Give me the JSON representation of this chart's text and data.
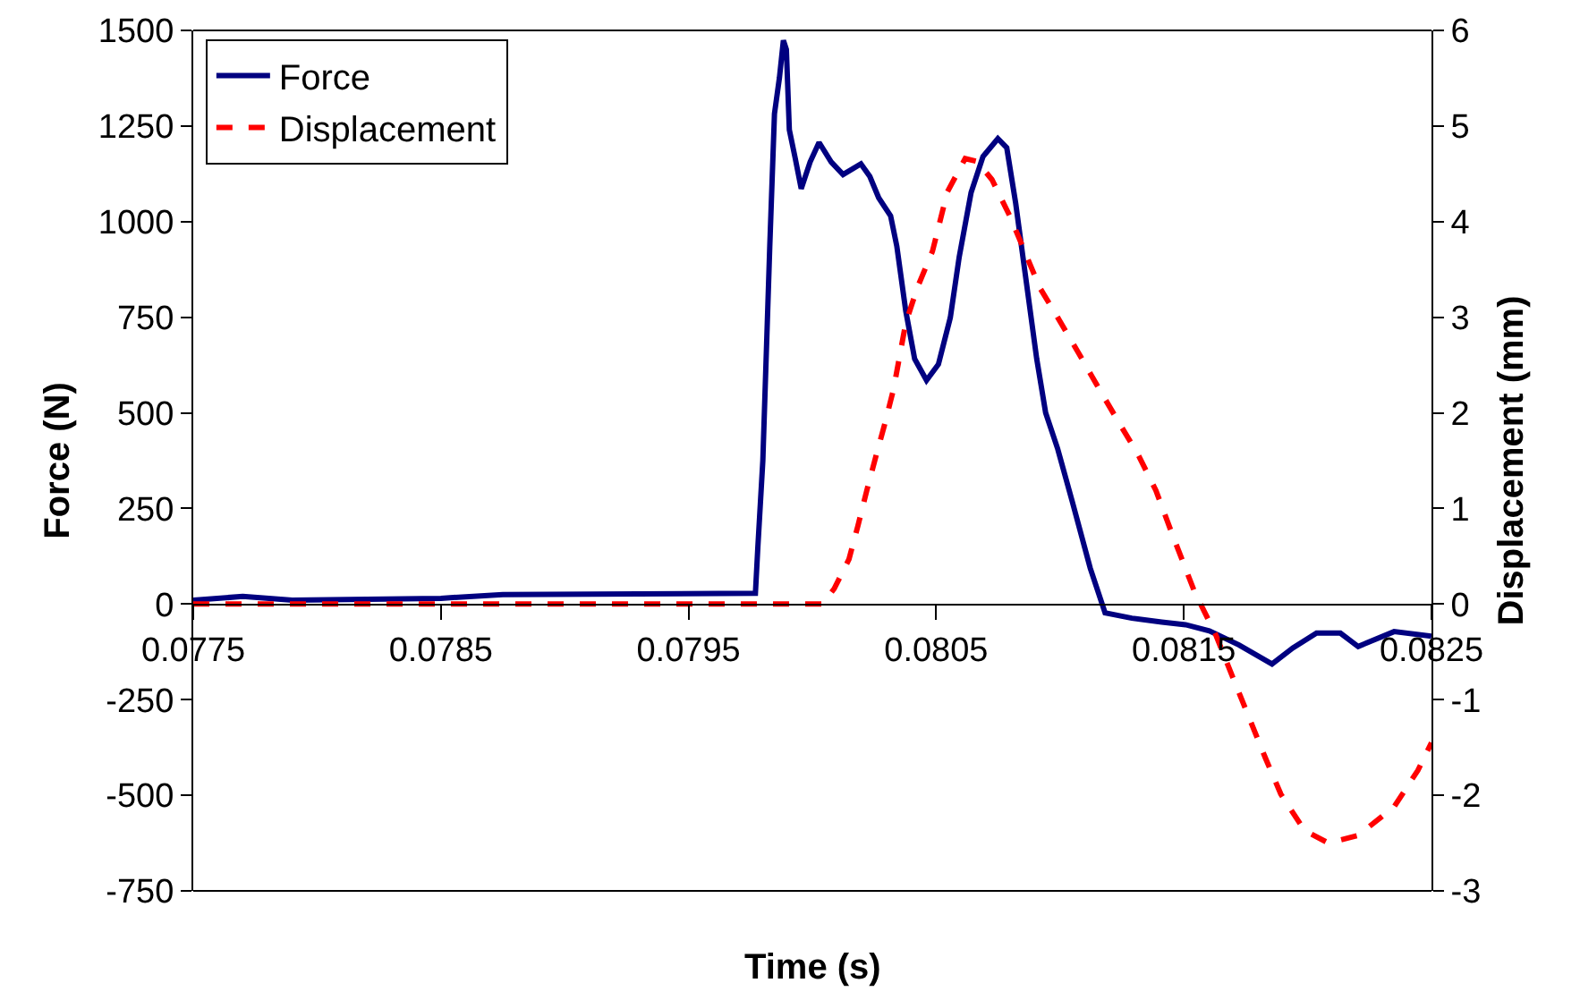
{
  "chart_data": {
    "type": "line",
    "xlabel": "Time (s)",
    "ylabel": "Force (N)",
    "y2label": "Displacement (mm)",
    "xlim": [
      0.0775,
      0.0825
    ],
    "xticks": [
      0.0775,
      0.0785,
      0.0795,
      0.0805,
      0.0815,
      0.0825
    ],
    "ylim": [
      -750,
      1500
    ],
    "yticks": [
      -750,
      -500,
      -250,
      0,
      250,
      500,
      750,
      1000,
      1250,
      1500
    ],
    "y2lim": [
      -3,
      6
    ],
    "y2ticks": [
      -3,
      -2,
      -1,
      0,
      1,
      2,
      3,
      4,
      5,
      6
    ],
    "grid": false,
    "legend": "top left",
    "marker": "none",
    "series": [
      {
        "name": "Force",
        "color": "#000080",
        "line_style": "solid",
        "x": [
          0.0775,
          0.0777,
          0.0779,
          0.0785,
          0.07875,
          0.07977,
          0.07978,
          0.0798,
          0.079828,
          0.079847,
          0.079867,
          0.079883,
          0.079895,
          0.079907,
          0.079931,
          0.079955,
          0.079991,
          0.080027,
          0.080076,
          0.080124,
          0.080196,
          0.080232,
          0.080268,
          0.080316,
          0.080341,
          0.080377,
          0.080413,
          0.080461,
          0.080509,
          0.080557,
          0.080593,
          0.080641,
          0.080689,
          0.080749,
          0.080785,
          0.080821,
          0.080857,
          0.080906,
          0.080942,
          0.08099,
          0.08105,
          0.081122,
          0.081182,
          0.08129,
          0.081411,
          0.081507,
          0.081603,
          0.081723,
          0.081856,
          0.08194,
          0.082036,
          0.082132,
          0.082204,
          0.082349,
          0.0825
        ],
        "values": [
          10,
          20,
          10,
          15,
          25,
          28,
          150,
          375,
          936,
          1282,
          1376,
          1474,
          1450,
          1240,
          1165,
          1086,
          1156,
          1207,
          1156,
          1123,
          1151,
          1118,
          1062,
          1015,
          936,
          767,
          641,
          585,
          627,
          749,
          908,
          1076,
          1170,
          1217,
          1193,
          1048,
          875,
          641,
          500,
          407,
          267,
          94,
          -23,
          -37,
          -47,
          -54,
          -70,
          -107,
          -157,
          -115,
          -76,
          -76,
          -111,
          -72,
          -84
        ]
      },
      {
        "name": "Displacement",
        "color": "#ff0000",
        "line_style": "dashed",
        "axis": "y2",
        "x": [
          0.0775,
          0.08004,
          0.080088,
          0.080148,
          0.080184,
          0.08022,
          0.080256,
          0.080292,
          0.080328,
          0.080377,
          0.080424,
          0.080485,
          0.080545,
          0.080617,
          0.080665,
          0.080725,
          0.080797,
          0.080857,
          0.080918,
          0.08099,
          0.081074,
          0.081158,
          0.081242,
          0.081314,
          0.081387,
          0.081459,
          0.081543,
          0.081627,
          0.081723,
          0.081831,
          0.081892,
          0.081988,
          0.082084,
          0.082204,
          0.082349,
          0.082445,
          0.0825
        ],
        "values": [
          0,
          0,
          0.16,
          0.47,
          0.82,
          1.19,
          1.54,
          1.88,
          2.25,
          2.94,
          3.31,
          3.69,
          4.31,
          4.66,
          4.63,
          4.44,
          4.06,
          3.69,
          3.31,
          3.0,
          2.63,
          2.25,
          1.88,
          1.57,
          1.19,
          0.69,
          0.13,
          -0.31,
          -0.93,
          -1.62,
          -1.99,
          -2.37,
          -2.5,
          -2.42,
          -2.12,
          -1.74,
          -1.45
        ]
      }
    ]
  }
}
